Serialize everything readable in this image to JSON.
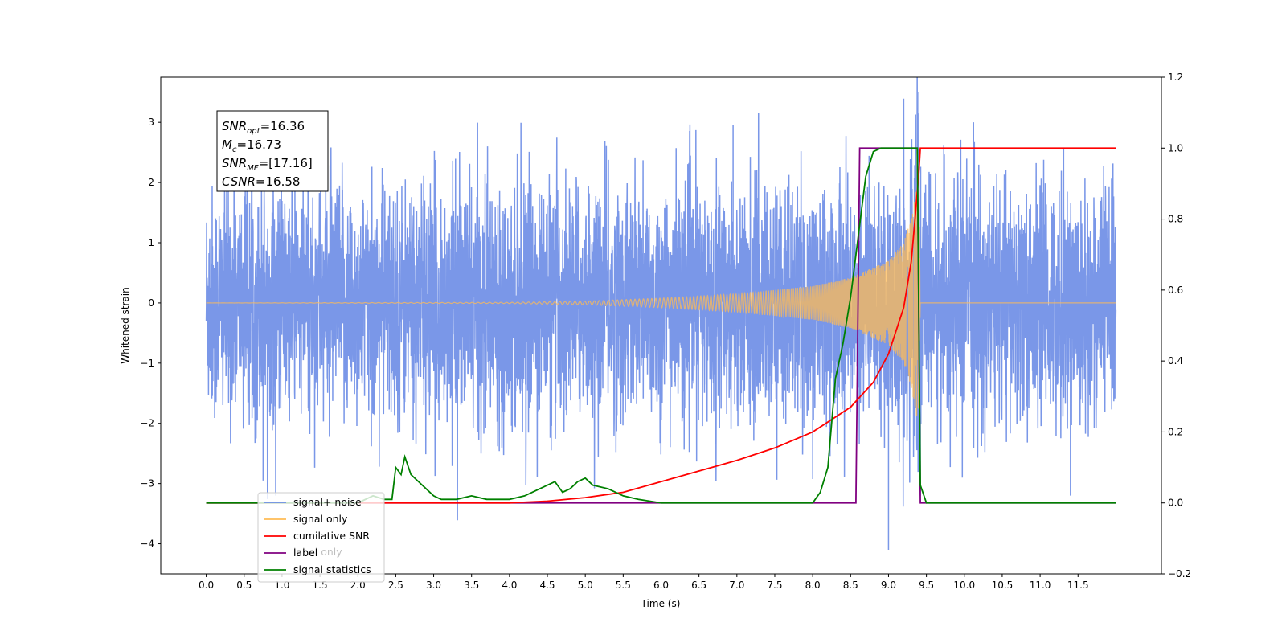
{
  "chart_data": {
    "type": "line",
    "xlabel": "Time (s)",
    "ylabel": "Whitened strain",
    "xlim": [
      -0.6,
      12.6
    ],
    "ylim": [
      -4.5,
      3.75
    ],
    "y2lim": [
      -0.2,
      1.2
    ],
    "x_ticks": [
      0.0,
      0.5,
      1.0,
      1.5,
      2.0,
      2.5,
      3.0,
      3.5,
      4.0,
      4.5,
      5.0,
      5.5,
      6.0,
      6.5,
      7.0,
      7.5,
      8.0,
      8.5,
      9.0,
      9.5,
      10.0,
      10.5,
      11.0,
      11.5
    ],
    "x_tick_labels": [
      "0.0",
      "0.5",
      "1.0",
      "1.5",
      "2.0",
      "2.5",
      "3.0",
      "3.5",
      "4.0",
      "4.5",
      "5.0",
      "5.5",
      "6.0",
      "6.5",
      "7.0",
      "7.5",
      "8.0",
      "8.5",
      "9.0",
      "9.5",
      "10.0",
      "10.5",
      "11.0",
      "11.5"
    ],
    "y_ticks": [
      -4,
      -3,
      -2,
      -1,
      0,
      1,
      2,
      3
    ],
    "y_tick_labels": [
      "−4",
      "−3",
      "−2",
      "−1",
      "0",
      "1",
      "2",
      "3"
    ],
    "y2_ticks": [
      -0.2,
      0.0,
      0.2,
      0.4,
      0.6,
      0.8,
      1.0,
      1.2
    ],
    "y2_tick_labels": [
      "−0.2",
      "0.0",
      "0.2",
      "0.4",
      "0.6",
      "0.8",
      "1.0",
      "1.2"
    ],
    "grid": false,
    "legend_position": "lower-left",
    "info_box": {
      "lines": [
        {
          "base": "SNR",
          "sub": "opt",
          "value": "=16.36"
        },
        {
          "base": "M",
          "sub": "c",
          "value": "=16.73"
        },
        {
          "base": "SNR",
          "sub": "MF",
          "value": "=[17.16]"
        },
        {
          "base": "CSNR",
          "sub": "",
          "value": "=16.58"
        }
      ]
    },
    "series": [
      {
        "name": "signal+ noise",
        "axis": "left",
        "color": "#6b8ce6",
        "noise_envelope": {
          "x_start": 0.0,
          "x_end": 12.0,
          "typical_amplitude": 1.6,
          "max": 3.5,
          "min": -4.1
        }
      },
      {
        "name": "signal only",
        "axis": "left",
        "color": "#ffbb55",
        "chirp_envelope": {
          "x": [
            0.0,
            4.0,
            5.0,
            6.0,
            7.0,
            8.0,
            8.5,
            9.0,
            9.2,
            9.3,
            9.4,
            9.42
          ],
          "amplitude": [
            0.0,
            0.01,
            0.03,
            0.08,
            0.15,
            0.28,
            0.42,
            0.7,
            1.0,
            1.4,
            2.1,
            0.0
          ]
        }
      },
      {
        "name": "cumilative SNR",
        "axis": "right",
        "color": "#ff0000",
        "x": [
          0.0,
          2.0,
          4.0,
          4.5,
          5.0,
          5.5,
          6.0,
          6.5,
          7.0,
          7.5,
          8.0,
          8.5,
          8.8,
          9.0,
          9.2,
          9.3,
          9.35,
          9.4,
          9.42,
          9.45,
          12.0
        ],
        "values": [
          0.0,
          0.0,
          0.0,
          0.005,
          0.015,
          0.03,
          0.06,
          0.09,
          0.12,
          0.155,
          0.2,
          0.27,
          0.34,
          0.42,
          0.55,
          0.68,
          0.8,
          0.93,
          1.0,
          1.0,
          1.0
        ]
      },
      {
        "name": "label",
        "axis": "right",
        "color": "#800080",
        "x": [
          0.0,
          8.57,
          8.62,
          9.38,
          9.42,
          12.0
        ],
        "values": [
          0.0,
          0.0,
          1.0,
          1.0,
          0.0,
          0.0
        ]
      },
      {
        "name": "signal statistics",
        "axis": "right",
        "color": "#008000",
        "x": [
          0.0,
          2.0,
          2.2,
          2.35,
          2.45,
          2.5,
          2.57,
          2.62,
          2.7,
          2.8,
          2.9,
          3.0,
          3.1,
          3.3,
          3.5,
          3.7,
          4.0,
          4.2,
          4.4,
          4.6,
          4.7,
          4.8,
          4.9,
          5.0,
          5.1,
          5.3,
          5.5,
          5.7,
          6.0,
          7.0,
          7.8,
          8.0,
          8.1,
          8.2,
          8.3,
          8.4,
          8.5,
          8.6,
          8.7,
          8.8,
          8.9,
          9.3,
          9.38,
          9.42,
          9.5,
          12.0
        ],
        "values": [
          0.0,
          0.0,
          0.02,
          0.01,
          0.01,
          0.1,
          0.08,
          0.13,
          0.08,
          0.06,
          0.04,
          0.02,
          0.01,
          0.01,
          0.02,
          0.01,
          0.01,
          0.02,
          0.04,
          0.06,
          0.03,
          0.04,
          0.06,
          0.07,
          0.05,
          0.04,
          0.02,
          0.01,
          0.0,
          0.0,
          0.0,
          0.0,
          0.03,
          0.1,
          0.35,
          0.45,
          0.58,
          0.75,
          0.92,
          0.99,
          1.0,
          1.0,
          1.0,
          0.05,
          0.0,
          0.0
        ]
      }
    ],
    "legend": [
      "signal+ noise",
      "signal only",
      "cumilative SNR",
      "label",
      "signal statistics"
    ],
    "legend_ghost_text": "label only"
  }
}
